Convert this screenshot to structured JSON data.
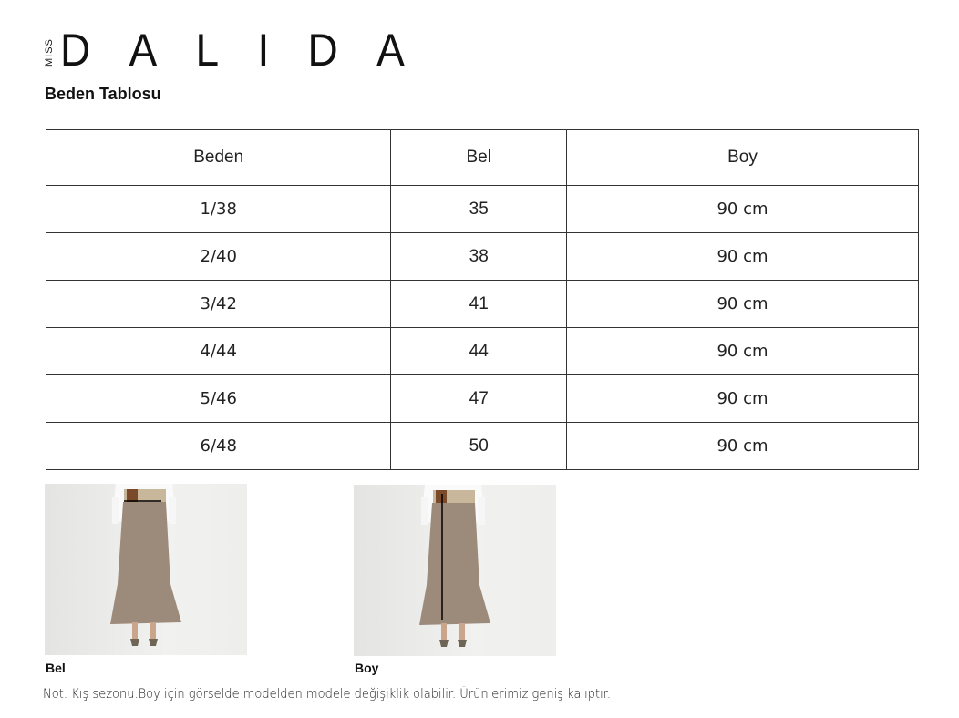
{
  "brand": {
    "prefix": "MISS",
    "name": "DALIDA"
  },
  "title": "Beden Tablosu",
  "table": {
    "headers": [
      "Beden",
      "Bel",
      "Boy"
    ],
    "rows": [
      [
        "1/38",
        "35",
        "90 cm"
      ],
      [
        "2/40",
        "38",
        "90 cm"
      ],
      [
        "3/42",
        "41",
        "90 cm"
      ],
      [
        "4/44",
        "44",
        "90 cm"
      ],
      [
        "5/46",
        "47",
        "90 cm"
      ],
      [
        "6/48",
        "50",
        "90 cm"
      ]
    ]
  },
  "images": [
    {
      "caption": "Bel"
    },
    {
      "caption": "Boy"
    }
  ],
  "note": "Not: Kış sezonu.Boy için görselde modelden modele değişiklik olabilir. Ürünlerimiz geniş kalıptır."
}
